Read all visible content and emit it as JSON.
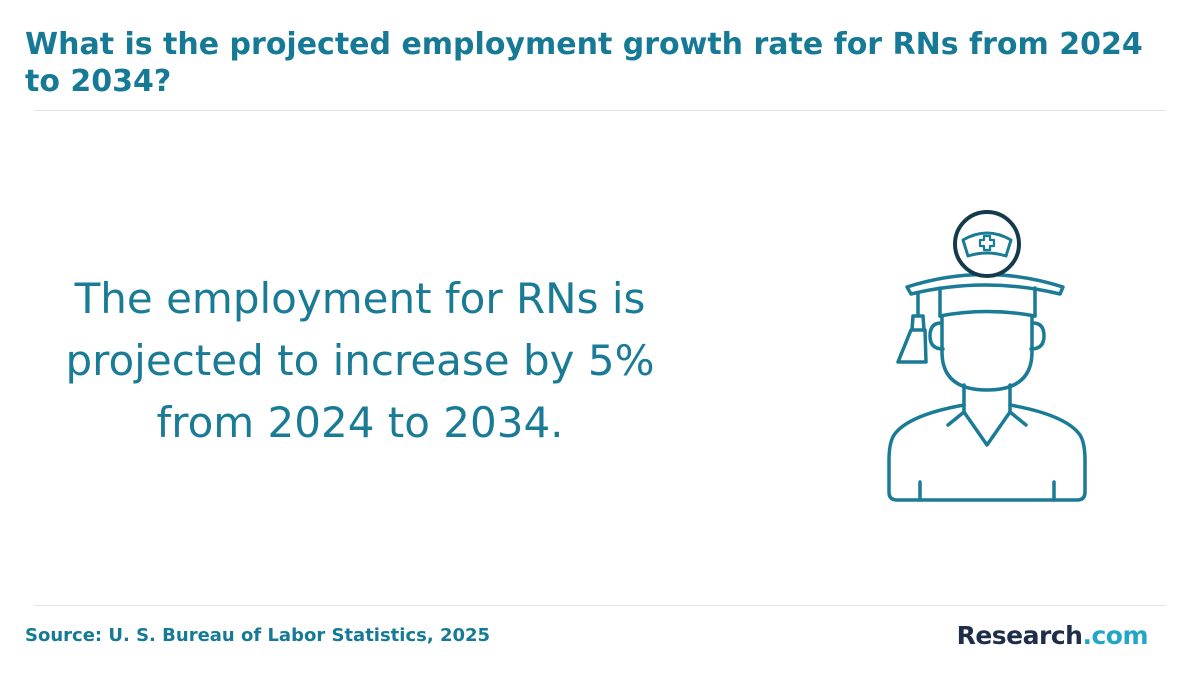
{
  "title": "What is the projected employment growth rate for RNs from 2024 to 2034?",
  "statement": {
    "line1": "The employment for RNs is",
    "line2": "projected to increase by 5%",
    "line3": "from 2024 to 2034."
  },
  "source": "Source: U. S. Bureau of Labor Statistics, 2025",
  "brand": {
    "name": "Research",
    "tld": ".com"
  },
  "illustration": {
    "icon": "nurse-graduate-icon",
    "stroke_color": "#1a7b96",
    "badge_color": "#143a4c"
  }
}
